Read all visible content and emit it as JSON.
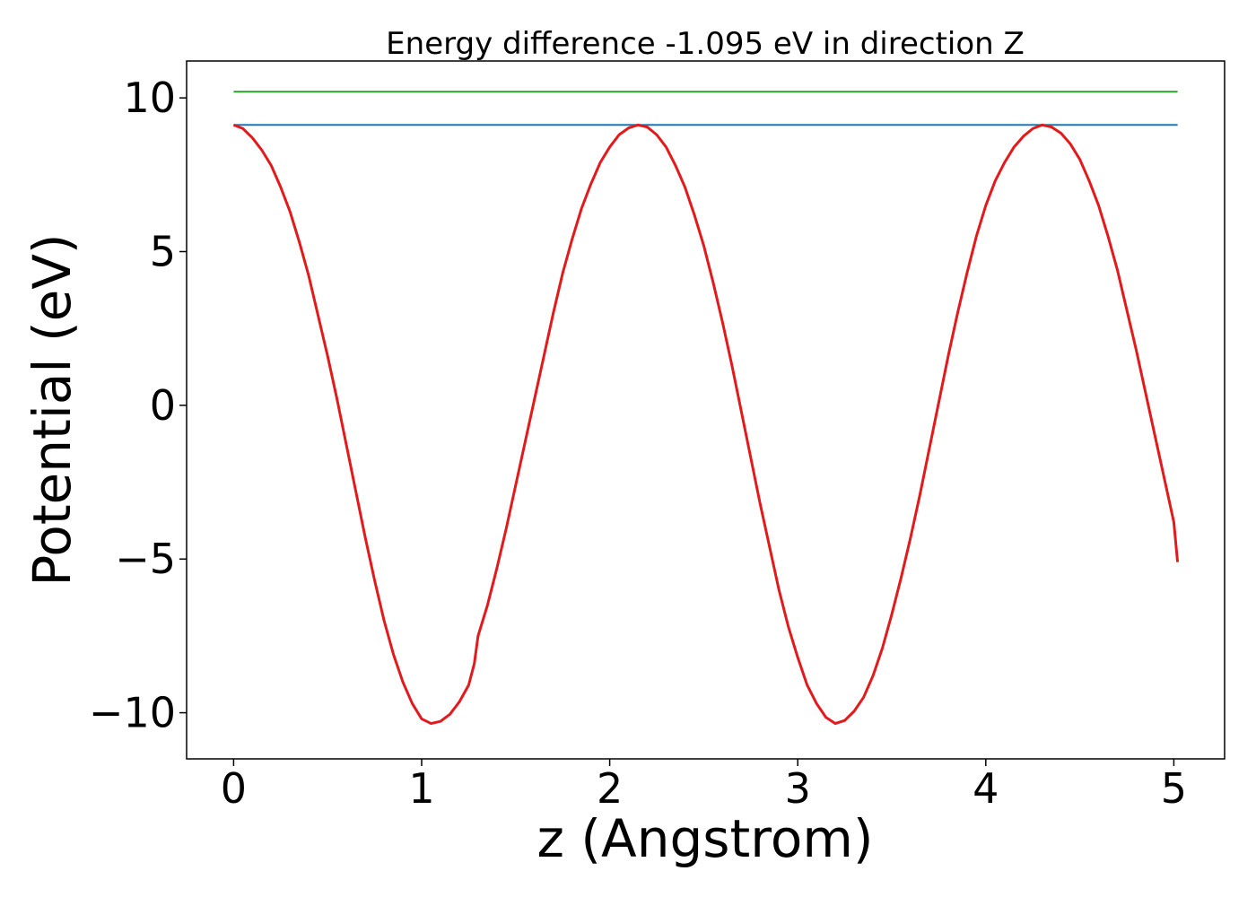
{
  "chart_data": {
    "type": "line",
    "title": "Energy difference -1.095 eV in direction Z",
    "xlabel": "z (Angstrom)",
    "ylabel": "Potential (eV)",
    "xlim": [
      -0.25,
      5.27
    ],
    "ylim": [
      -11.5,
      11.2
    ],
    "x_ticks": [
      0,
      1,
      2,
      3,
      4,
      5
    ],
    "x_tick_labels": [
      "0",
      "1",
      "2",
      "3",
      "4",
      "5"
    ],
    "y_ticks": [
      10,
      5,
      0,
      -5,
      -10
    ],
    "y_tick_labels": [
      "10",
      "5",
      "0",
      "−5",
      "−10"
    ],
    "grid": false,
    "legend": "none",
    "series": [
      {
        "color": "#2ca02c",
        "x": [
          0,
          5.02
        ],
        "y": [
          10.2,
          10.2
        ]
      },
      {
        "color": "#1f77b4",
        "x": [
          0,
          5.02
        ],
        "y": [
          9.12,
          9.12
        ]
      },
      {
        "color": "#e31a1c",
        "x": [
          0,
          0.05,
          0.1,
          0.15,
          0.2,
          0.25,
          0.3,
          0.35,
          0.4,
          0.45,
          0.5,
          0.55,
          0.6,
          0.65,
          0.7,
          0.75,
          0.8,
          0.85,
          0.9,
          0.95,
          1.0,
          1.05,
          1.1,
          1.15,
          1.2,
          1.25,
          1.28,
          1.3,
          1.35,
          1.4,
          1.45,
          1.5,
          1.55,
          1.6,
          1.65,
          1.7,
          1.75,
          1.8,
          1.85,
          1.9,
          1.95,
          2.0,
          2.05,
          2.1,
          2.15,
          2.2,
          2.25,
          2.3,
          2.35,
          2.4,
          2.45,
          2.5,
          2.55,
          2.6,
          2.65,
          2.7,
          2.75,
          2.8,
          2.85,
          2.9,
          2.95,
          3.0,
          3.05,
          3.1,
          3.15,
          3.2,
          3.25,
          3.3,
          3.35,
          3.4,
          3.45,
          3.5,
          3.55,
          3.6,
          3.65,
          3.7,
          3.75,
          3.8,
          3.85,
          3.9,
          3.95,
          4.0,
          4.05,
          4.1,
          4.15,
          4.2,
          4.25,
          4.3,
          4.35,
          4.4,
          4.45,
          4.5,
          4.55,
          4.6,
          4.65,
          4.7,
          4.75,
          4.8,
          4.85,
          4.9,
          4.95,
          5.0,
          5.02
        ],
        "y": [
          9.12,
          9.0,
          8.7,
          8.3,
          7.8,
          7.1,
          6.3,
          5.3,
          4.2,
          2.9,
          1.6,
          0.2,
          -1.3,
          -2.8,
          -4.3,
          -5.7,
          -7.0,
          -8.1,
          -9.0,
          -9.7,
          -10.2,
          -10.35,
          -10.28,
          -10.05,
          -9.65,
          -9.1,
          -8.4,
          -7.5,
          -6.5,
          -5.3,
          -4.0,
          -2.6,
          -1.2,
          0.2,
          1.6,
          3.0,
          4.3,
          5.4,
          6.4,
          7.2,
          7.9,
          8.4,
          8.8,
          9.02,
          9.12,
          9.05,
          8.8,
          8.4,
          7.8,
          7.1,
          6.2,
          5.2,
          4.0,
          2.7,
          1.3,
          -0.2,
          -1.7,
          -3.2,
          -4.6,
          -6.0,
          -7.2,
          -8.2,
          -9.1,
          -9.7,
          -10.15,
          -10.35,
          -10.25,
          -9.95,
          -9.5,
          -8.8,
          -7.9,
          -6.8,
          -5.6,
          -4.3,
          -2.9,
          -1.4,
          0.1,
          1.6,
          3.0,
          4.3,
          5.5,
          6.5,
          7.3,
          7.9,
          8.4,
          8.75,
          9.0,
          9.12,
          9.05,
          8.85,
          8.5,
          8.0,
          7.3,
          6.5,
          5.5,
          4.4,
          3.1,
          1.8,
          0.4,
          -1.0,
          -2.4,
          -3.8,
          -5.1
        ]
      }
    ]
  }
}
